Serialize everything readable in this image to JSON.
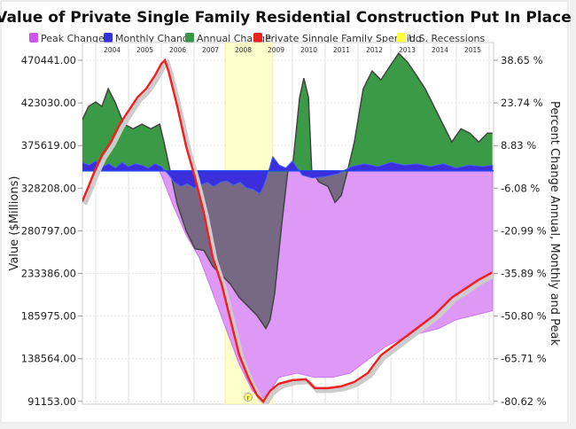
{
  "chart_data": {
    "type": "area",
    "title": "Value of Private Single Family Residential Construction Put In Place",
    "ylabel": "Value ($Millions)",
    "y2label": "Percent Change Annual, Monthly and Peak",
    "xlim": [
      2003.59,
      2016.1
    ],
    "ylim": [
      91153,
      470441
    ],
    "y2lim": [
      -80.62,
      38.65
    ],
    "grid": true,
    "legend_position": "top",
    "legend": [
      {
        "label": "Peak Change",
        "color": "#cc55ee"
      },
      {
        "label": "Monthly Change",
        "color": "#3333dd"
      },
      {
        "label": "Annual Change",
        "color": "#339944"
      },
      {
        "label": "Private Sinngle Family Spending",
        "color": "#ee2222"
      },
      {
        "label": "U.S. Recessions",
        "color": "#ffff44"
      }
    ],
    "x_tick_labels": [
      "2004",
      "2005",
      "2006",
      "2007",
      "2008",
      "2009",
      "2010",
      "2011",
      "2012",
      "2013",
      "2014",
      "2015"
    ],
    "y_tick_labels": [
      "470441.00",
      "423030.00",
      "375619.00",
      "328208.00",
      "280797.00",
      "233386.00",
      "185975.00",
      "138564.00",
      "91153.00"
    ],
    "y2_tick_labels": [
      "38.65 %",
      "23.74 %",
      "8.83 %",
      "-6.08 %",
      "-20.99 %",
      "-35.89 %",
      "-50.80 %",
      "-65.71 %",
      "-80.62 %"
    ],
    "recession": {
      "label": "U.S. Recessions",
      "start": 2007.95,
      "end": 2009.4
    },
    "annotation": "r",
    "series": [
      {
        "name": "Private Sinngle Family Spending",
        "axis": "left",
        "x": [
          2003.59,
          2003.78,
          2004.0,
          2004.19,
          2004.46,
          2004.73,
          2005.0,
          2005.27,
          2005.54,
          2005.81,
          2006.0,
          2006.11,
          2006.22,
          2006.49,
          2006.76,
          2007.03,
          2007.3,
          2007.57,
          2007.84,
          2008.11,
          2008.38,
          2008.65,
          2008.92,
          2009.11,
          2009.32,
          2009.59,
          2010.0,
          2010.41,
          2010.68,
          2011.08,
          2011.49,
          2011.89,
          2012.3,
          2012.7,
          2013.24,
          2013.78,
          2014.32,
          2014.86,
          2015.27,
          2015.68,
          2016.08
        ],
        "y": [
          313400,
          330200,
          349900,
          364800,
          379600,
          399300,
          414100,
          429000,
          438800,
          453600,
          466500,
          470441,
          458600,
          419100,
          374600,
          340000,
          300600,
          251200,
          221500,
          182000,
          142500,
          117800,
          98100,
          91153,
          103000,
          111000,
          114900,
          115900,
          106000,
          106000,
          108000,
          112900,
          122800,
          142500,
          157300,
          172200,
          187000,
          206700,
          216600,
          226500,
          234400
        ]
      },
      {
        "name": "Peak Change",
        "axis": "right",
        "x": [
          2005.95,
          2006.35,
          2006.76,
          2007.16,
          2007.57,
          2007.97,
          2008.38,
          2008.78,
          2009.05,
          2009.32,
          2009.59,
          2010.14,
          2010.68,
          2011.22,
          2011.76,
          2012.3,
          2012.84,
          2013.38,
          2013.92,
          2014.46,
          2015.0,
          2015.54,
          2016.1
        ],
        "y": [
          0,
          -11.7,
          -22.5,
          -30.3,
          -42.7,
          -55.1,
          -67.6,
          -76.9,
          -80.0,
          -76.9,
          -72.2,
          -70.7,
          -72.2,
          -72.2,
          -70.7,
          -66.0,
          -61.4,
          -58.3,
          -56.7,
          -55.1,
          -52.0,
          -50.5,
          -48.9
        ]
      },
      {
        "name": "Annual Change",
        "axis": "right",
        "x": [
          2003.59,
          2003.78,
          2004.0,
          2004.19,
          2004.38,
          2004.59,
          2004.86,
          2005.14,
          2005.41,
          2005.68,
          2005.95,
          2006.08,
          2006.27,
          2006.49,
          2006.76,
          2007.03,
          2007.3,
          2007.57,
          2007.84,
          2008.11,
          2008.38,
          2008.65,
          2008.92,
          2009.19,
          2009.32,
          2009.46,
          2009.68,
          2009.86,
          2010.0,
          2010.22,
          2010.35,
          2010.49,
          2010.59,
          2010.81,
          2011.08,
          2011.3,
          2011.49,
          2011.68,
          2011.89,
          2012.16,
          2012.43,
          2012.7,
          2012.97,
          2013.24,
          2013.51,
          2013.78,
          2014.05,
          2014.32,
          2014.59,
          2014.86,
          2015.14,
          2015.41,
          2015.68,
          2015.95,
          2016.1
        ],
        "y": [
          17.8,
          22.5,
          24.1,
          22.5,
          28.7,
          24.1,
          16.3,
          14.7,
          16.3,
          14.7,
          16.3,
          10.1,
          0,
          -11.7,
          -21.0,
          -27.2,
          -27.8,
          -33.4,
          -36.5,
          -39.6,
          -44.3,
          -47.4,
          -50.5,
          -55.1,
          -52.0,
          -42.7,
          -17.9,
          0,
          0.8,
          25.6,
          32.4,
          25.6,
          0,
          -3.9,
          -5.4,
          -11.0,
          -8.6,
          0,
          10.1,
          28.7,
          34.9,
          31.8,
          36.5,
          41.1,
          38.0,
          33.4,
          28.7,
          22.5,
          16.3,
          10.1,
          14.7,
          13.2,
          10.1,
          13.2,
          13.2
        ]
      },
      {
        "name": "Monthly Change",
        "axis": "right",
        "x": [
          2003.59,
          2003.8,
          2004.0,
          2004.2,
          2004.4,
          2004.6,
          2004.8,
          2005.0,
          2005.2,
          2005.4,
          2005.6,
          2005.8,
          2006.0,
          2006.2,
          2006.4,
          2006.6,
          2006.8,
          2007.0,
          2007.2,
          2007.4,
          2007.6,
          2007.8,
          2008.0,
          2008.2,
          2008.4,
          2008.6,
          2008.8,
          2009.0,
          2009.1,
          2009.2,
          2009.4,
          2009.6,
          2009.8,
          2010.0,
          2010.3,
          2010.6,
          2011.0,
          2011.4,
          2011.8,
          2012.2,
          2012.6,
          2013.0,
          2013.4,
          2013.8,
          2014.2,
          2014.6,
          2015.0,
          2015.4,
          2015.8,
          2016.1
        ],
        "y": [
          3.0,
          2.0,
          3.5,
          1.5,
          2.5,
          1.0,
          3.0,
          1.5,
          2.5,
          2.0,
          1.0,
          2.5,
          1.5,
          -1.0,
          -4.0,
          -5.5,
          -4.5,
          -6.0,
          -5.0,
          -4.0,
          -5.5,
          -4.0,
          -3.5,
          -5.0,
          -4.0,
          -6.0,
          -6.5,
          -8.0,
          -6.0,
          -3.0,
          5.0,
          2.0,
          1.0,
          3.5,
          -1.5,
          -2.5,
          -2.0,
          -1.0,
          1.5,
          2.5,
          1.5,
          3.0,
          2.0,
          2.5,
          1.5,
          2.5,
          1.0,
          2.0,
          1.5,
          2.0
        ]
      }
    ]
  }
}
